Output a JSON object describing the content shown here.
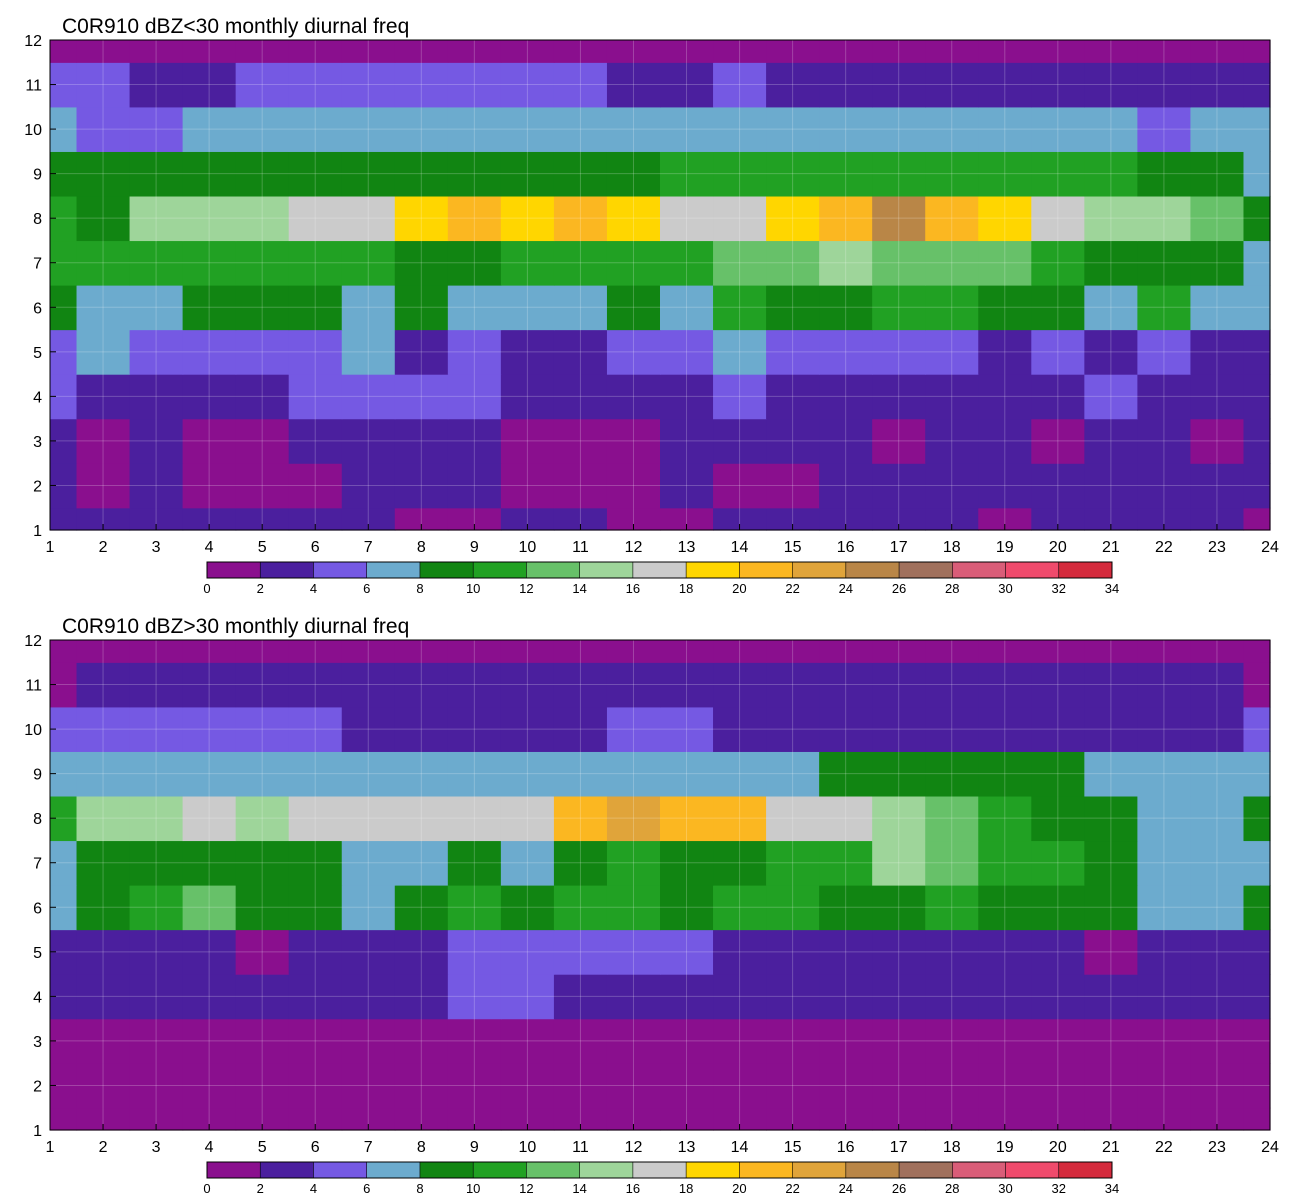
{
  "chart_data": [
    {
      "type": "heatmap",
      "title": "C0R910 dBZ<30 monthly diurnal freq",
      "xlabel": "",
      "ylabel": "",
      "xlim": [
        1,
        24
      ],
      "ylim": [
        1,
        12
      ],
      "x": [
        1,
        2,
        3,
        4,
        5,
        6,
        7,
        8,
        9,
        10,
        11,
        12,
        13,
        14,
        15,
        16,
        17,
        18,
        19,
        20,
        21,
        22,
        23,
        24
      ],
      "y": [
        1,
        2,
        3,
        4,
        5,
        6,
        7,
        8,
        9,
        10,
        11,
        12
      ],
      "grid": true,
      "legend": "colorbar-bottom",
      "z": [
        [
          2,
          2,
          3,
          3,
          3,
          3,
          2,
          1,
          1,
          3,
          2,
          1,
          1,
          2,
          3,
          3,
          3,
          2,
          1,
          2,
          3,
          2,
          2,
          1
        ],
        [
          2,
          1,
          2,
          1,
          1,
          1,
          2,
          2,
          2,
          1,
          1,
          1,
          2,
          1,
          1,
          2,
          2,
          3,
          2,
          3,
          3,
          2,
          3,
          2
        ],
        [
          2,
          1,
          2,
          1,
          1,
          2,
          3,
          2,
          2,
          1,
          1,
          1,
          2,
          2,
          2,
          2,
          1,
          3,
          3,
          1,
          2,
          3,
          1,
          3
        ],
        [
          4,
          3,
          3,
          3,
          3,
          4,
          5,
          5,
          4,
          3,
          3,
          3,
          3,
          4,
          3,
          3,
          2,
          3,
          2,
          3,
          4,
          3,
          2,
          2
        ],
        [
          5,
          6,
          5,
          5,
          4,
          5,
          6,
          3,
          5,
          3,
          3,
          4,
          5,
          7,
          5,
          4,
          4,
          5,
          3,
          5,
          3,
          4,
          3,
          3
        ],
        [
          8,
          7,
          7,
          8,
          8,
          8,
          7,
          8,
          7,
          7,
          7,
          8,
          6,
          11,
          9,
          8,
          11,
          10,
          8,
          8,
          6,
          10,
          6,
          6
        ],
        [
          10,
          11,
          10,
          11,
          10,
          11,
          10,
          9,
          9,
          10,
          10,
          11,
          11,
          12,
          12,
          14,
          13,
          12,
          12,
          11,
          9,
          9,
          9,
          7
        ],
        [
          10,
          9,
          14,
          15,
          15,
          17,
          17,
          18,
          20,
          18,
          20,
          19,
          17,
          16,
          18,
          21,
          24,
          20,
          19,
          17,
          15,
          14,
          13,
          9
        ],
        [
          8,
          9,
          9,
          8,
          8,
          9,
          9,
          9,
          9,
          9,
          9,
          9,
          10,
          10,
          10,
          11,
          10,
          10,
          10,
          10,
          11,
          9,
          8,
          7
        ],
        [
          6,
          5,
          5,
          6,
          6,
          6,
          6,
          6,
          6,
          6,
          6,
          7,
          7,
          6,
          7,
          7,
          6,
          6,
          6,
          6,
          6,
          5,
          6,
          6
        ],
        [
          4,
          4,
          3,
          3,
          4,
          4,
          5,
          5,
          5,
          4,
          4,
          3,
          3,
          4,
          3,
          3,
          3,
          3,
          3,
          2,
          2,
          3,
          3,
          2
        ],
        [
          1,
          1,
          1,
          1,
          1,
          1,
          1,
          1,
          1,
          1,
          1,
          1,
          1,
          1,
          1,
          1,
          1,
          1,
          1,
          1,
          1,
          1,
          1,
          1
        ]
      ],
      "colorbar": {
        "ticks": [
          "0",
          "2",
          "4",
          "6",
          "8",
          "10",
          "12",
          "14",
          "16",
          "18",
          "20",
          "22",
          "24",
          "26",
          "28",
          "30",
          "32",
          "34"
        ],
        "colors": [
          "#8a0f8e",
          "#4b1f9e",
          "#7559e3",
          "#6cabce",
          "#118512",
          "#21a123",
          "#67c169",
          "#9ed59a",
          "#cbcbcb",
          "#ffd600",
          "#fbb721",
          "#e0a43a",
          "#b98647",
          "#a0705c",
          "#d95d78",
          "#ef4a6c",
          "#d42a3c"
        ]
      }
    },
    {
      "type": "heatmap",
      "title": "C0R910 dBZ>30 monthly diurnal freq",
      "xlabel": "",
      "ylabel": "",
      "xlim": [
        1,
        24
      ],
      "ylim": [
        1,
        12
      ],
      "x": [
        1,
        2,
        3,
        4,
        5,
        6,
        7,
        8,
        9,
        10,
        11,
        12,
        13,
        14,
        15,
        16,
        17,
        18,
        19,
        20,
        21,
        22,
        23,
        24
      ],
      "y": [
        1,
        2,
        3,
        4,
        5,
        6,
        7,
        8,
        9,
        10,
        11,
        12
      ],
      "grid": true,
      "legend": "colorbar-bottom",
      "z": [
        [
          1,
          1,
          1,
          1,
          1,
          1,
          1,
          1,
          1,
          1,
          1,
          1,
          1,
          1,
          1,
          1,
          1,
          1,
          1,
          1,
          1,
          1,
          1,
          1
        ],
        [
          1,
          1,
          1,
          1,
          1,
          1,
          1,
          1,
          1,
          1,
          1,
          1,
          1,
          1,
          1,
          1,
          1,
          1,
          1,
          1,
          1,
          1,
          1,
          1
        ],
        [
          1,
          1,
          1,
          1,
          1,
          1,
          1,
          1,
          1,
          1,
          1,
          1,
          1,
          1,
          1,
          1,
          1,
          1,
          1,
          1,
          1,
          1,
          1,
          1
        ],
        [
          2,
          2,
          3,
          3,
          3,
          3,
          3,
          3,
          4,
          4,
          3,
          2,
          2,
          3,
          3,
          3,
          3,
          3,
          3,
          3,
          3,
          3,
          3,
          2
        ],
        [
          2,
          3,
          2,
          3,
          1,
          3,
          3,
          3,
          5,
          5,
          5,
          5,
          4,
          3,
          3,
          2,
          3,
          2,
          3,
          3,
          1,
          3,
          2,
          3
        ],
        [
          6,
          8,
          11,
          12,
          8,
          9,
          7,
          9,
          11,
          8,
          11,
          10,
          9,
          11,
          10,
          9,
          9,
          10,
          9,
          9,
          8,
          6,
          6,
          9
        ],
        [
          7,
          9,
          8,
          9,
          9,
          8,
          6,
          7,
          8,
          6,
          9,
          11,
          9,
          9,
          10,
          10,
          15,
          13,
          11,
          10,
          8,
          7,
          6,
          6
        ],
        [
          10,
          14,
          14,
          16,
          14,
          16,
          16,
          17,
          16,
          16,
          20,
          22,
          20,
          20,
          16,
          16,
          14,
          12,
          10,
          9,
          8,
          7,
          7,
          9
        ],
        [
          6,
          7,
          6,
          6,
          6,
          6,
          6,
          6,
          6,
          6,
          6,
          7,
          7,
          7,
          7,
          8,
          9,
          9,
          9,
          8,
          7,
          6,
          6,
          7
        ],
        [
          5,
          4,
          5,
          5,
          4,
          4,
          3,
          3,
          2,
          3,
          3,
          4,
          5,
          3,
          3,
          3,
          3,
          3,
          3,
          3,
          3,
          3,
          3,
          4
        ],
        [
          1,
          2,
          2,
          3,
          2,
          3,
          3,
          2,
          2,
          3,
          3,
          3,
          3,
          3,
          2,
          2,
          2,
          3,
          3,
          2,
          2,
          2,
          2,
          1
        ],
        [
          1,
          1,
          1,
          1,
          1,
          1,
          1,
          1,
          1,
          1,
          1,
          1,
          1,
          1,
          1,
          1,
          1,
          1,
          1,
          1,
          1,
          1,
          1,
          1
        ]
      ],
      "colorbar": {
        "ticks": [
          "0",
          "2",
          "4",
          "6",
          "8",
          "10",
          "12",
          "14",
          "16",
          "18",
          "20",
          "22",
          "24",
          "26",
          "28",
          "30",
          "32",
          "34"
        ],
        "colors": [
          "#8a0f8e",
          "#4b1f9e",
          "#7559e3",
          "#6cabce",
          "#118512",
          "#21a123",
          "#67c169",
          "#9ed59a",
          "#cbcbcb",
          "#ffd600",
          "#fbb721",
          "#e0a43a",
          "#b98647",
          "#a0705c",
          "#d95d78",
          "#ef4a6c",
          "#d42a3c"
        ]
      }
    }
  ]
}
